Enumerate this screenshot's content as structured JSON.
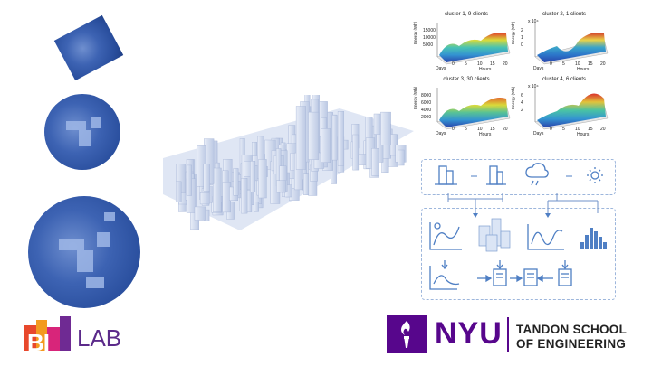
{
  "heatmaps": [
    {
      "title": "cluster 1, 9 clients",
      "ylabel": "Energy (Wh)",
      "yticks": [
        "15000",
        "10000",
        "5000"
      ],
      "exponent": "",
      "xlabel": "Hours",
      "daylabel": "Days",
      "xticks": [
        "0",
        "5",
        "10",
        "15",
        "20"
      ]
    },
    {
      "title": "cluster 2, 1 clients",
      "ylabel": "Energy (Wh)",
      "yticks": [
        "2",
        "1",
        "0"
      ],
      "exponent": "x 10⁴",
      "xlabel": "Hours",
      "daylabel": "Days",
      "xticks": [
        "0",
        "5",
        "10",
        "15",
        "20"
      ]
    },
    {
      "title": "cluster 3, 30 clients",
      "ylabel": "Energy (Wh)",
      "yticks": [
        "8000",
        "6000",
        "4000",
        "2000"
      ],
      "exponent": "",
      "xlabel": "Hours",
      "daylabel": "Days",
      "xticks": [
        "0",
        "5",
        "10",
        "15",
        "20"
      ]
    },
    {
      "title": "cluster 4, 6 clients",
      "ylabel": "Energy (Wh)",
      "yticks": [
        "6",
        "4",
        "2"
      ],
      "exponent": "x 10⁴",
      "xlabel": "Hours",
      "daylabel": "Days",
      "xticks": [
        "0",
        "5",
        "10",
        "15",
        "20"
      ]
    }
  ],
  "logos": {
    "bilab_bi": "BI",
    "bilab_lab": "LAB",
    "nyu": "NYU",
    "tandon_line1": "TANDON SCHOOL",
    "tandon_line2": "OF ENGINEERING"
  },
  "icons": [
    "building-icon",
    "building-icon",
    "weather-icon",
    "sun-icon",
    "chart-icon",
    "city-icon",
    "wave-chart-icon",
    "histogram-icon",
    "download-icon",
    "document-icon",
    "torch-icon"
  ],
  "colors": {
    "satellite": "#2a4f9e",
    "nyu_purple": "#57068c",
    "diagram_blue": "#4f7fc4"
  }
}
